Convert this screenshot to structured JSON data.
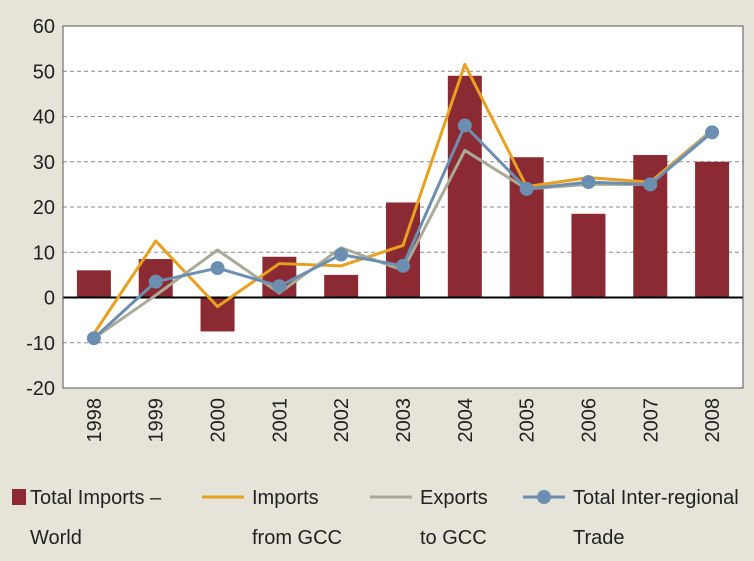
{
  "chart_data": {
    "type": "bar",
    "categories": [
      "1998",
      "1999",
      "2000",
      "2001",
      "2002",
      "2003",
      "2004",
      "2005",
      "2006",
      "2007",
      "2008"
    ],
    "ylim": [
      -20,
      60
    ],
    "yticks": [
      -20,
      -10,
      0,
      10,
      20,
      30,
      40,
      50,
      60
    ],
    "grid": "horizontal-dashed",
    "legend_placement": "bottom",
    "series": [
      {
        "name": "Total Imports – World",
        "label_lines": [
          "Total Imports –",
          "World"
        ],
        "kind": "bar",
        "color": "#8b2a32",
        "values": [
          6,
          8.5,
          -7.5,
          9,
          5,
          21,
          49,
          31,
          18.5,
          31.5,
          30
        ]
      },
      {
        "name": "Imports from GCC",
        "label_lines": [
          "Imports",
          "from GCC"
        ],
        "kind": "line",
        "color": "#e8a020",
        "values": [
          -8,
          12.5,
          -2,
          7.5,
          7,
          11.5,
          51.5,
          24.5,
          26.5,
          25.5,
          37
        ]
      },
      {
        "name": "Exports to GCC",
        "label_lines": [
          "Exports",
          "to GCC"
        ],
        "kind": "line",
        "color": "#a9ab98",
        "values": [
          -9,
          0.5,
          10.5,
          1,
          11,
          6,
          32.5,
          24,
          25,
          25,
          37
        ]
      },
      {
        "name": "Total Inter-regional Trade",
        "label_lines": [
          "Total Inter-regional",
          "Trade"
        ],
        "kind": "line-marker",
        "color": "#6c8fb1",
        "values": [
          -9,
          3.5,
          6.5,
          2.5,
          9.5,
          7,
          38,
          24,
          25.5,
          25,
          36.5
        ]
      }
    ]
  }
}
